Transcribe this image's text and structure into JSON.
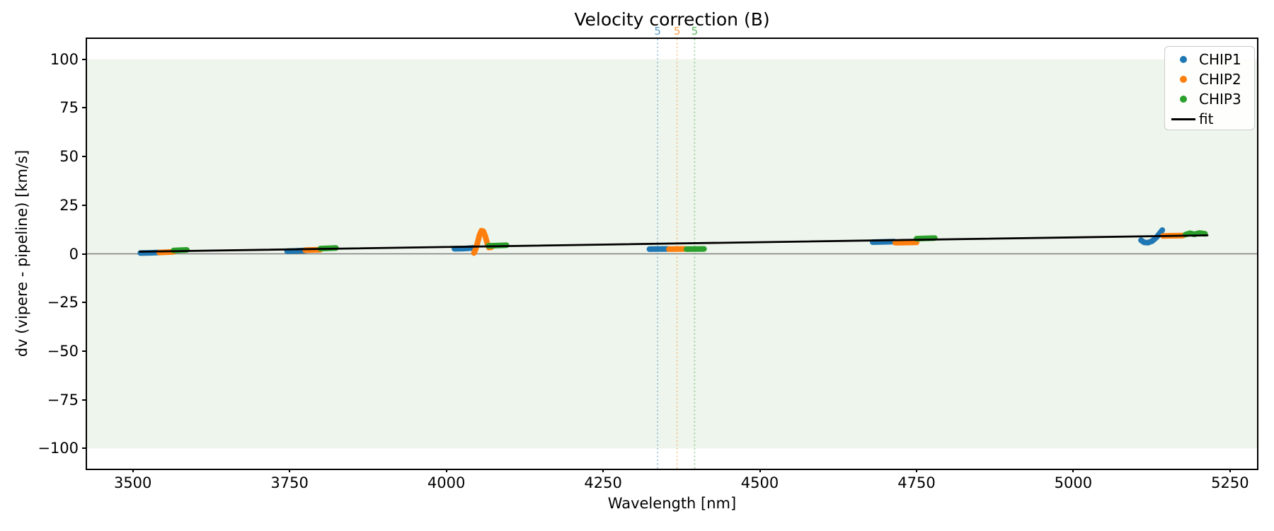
{
  "title": "Velocity correction (B)",
  "colors": {
    "chip1": "#1f77b4",
    "chip2": "#ff7f0e",
    "chip3": "#2ca02c",
    "fit": "#000000",
    "band": "#eef5ec",
    "zero_line": "#7f7f7f",
    "spine": "#000000",
    "legend_border": "#cccccc"
  },
  "chart_data": {
    "type": "scatter",
    "title": "Velocity correction (B)",
    "xlabel": "Wavelength [nm]",
    "ylabel": "dv (vipere - pipeline) [km/s]",
    "xlim": [
      3427,
      5293
    ],
    "ylim": [
      -110.4,
      110.4
    ],
    "grid": false,
    "x_ticks": [
      {
        "value": 3500,
        "label": "3500"
      },
      {
        "value": 3750,
        "label": "3750"
      },
      {
        "value": 4000,
        "label": "4000"
      },
      {
        "value": 4250,
        "label": "4250"
      },
      {
        "value": 4500,
        "label": "4500"
      },
      {
        "value": 4750,
        "label": "4750"
      },
      {
        "value": 5000,
        "label": "5000"
      },
      {
        "value": 5250,
        "label": "5250"
      }
    ],
    "y_ticks": [
      {
        "value": 100,
        "label": "100"
      },
      {
        "value": 75,
        "label": "75"
      },
      {
        "value": 50,
        "label": "50"
      },
      {
        "value": 25,
        "label": "25"
      },
      {
        "value": 0,
        "label": "0"
      },
      {
        "value": -25,
        "label": "−25"
      },
      {
        "value": -50,
        "label": "−50"
      },
      {
        "value": -75,
        "label": "−75"
      },
      {
        "value": -100,
        "label": "−100"
      }
    ],
    "band": {
      "from": -100,
      "to": 100,
      "color": "#eef5ec"
    },
    "zero_line": {
      "y": 0,
      "color": "#7f7f7f"
    },
    "vertical_markers": [
      {
        "x": 4337,
        "label": "5",
        "color": "#1f77b4"
      },
      {
        "x": 4368,
        "label": "5",
        "color": "#ff7f0e"
      },
      {
        "x": 4396,
        "label": "5",
        "color": "#2ca02c"
      }
    ],
    "series": [
      {
        "name": "CHIP1",
        "color": "#1f77b4",
        "segments": [
          [
            [
              3512,
              0.4
            ],
            [
              3527,
              0.5
            ],
            [
              3541,
              0.7
            ]
          ],
          [
            [
              3746,
              1.4
            ],
            [
              3760,
              1.5
            ],
            [
              3774,
              1.7
            ]
          ],
          [
            [
              4013,
              2.6
            ],
            [
              4028,
              2.7
            ],
            [
              4045,
              3.1
            ]
          ],
          [
            [
              4324,
              2.4
            ],
            [
              4353,
              2.5
            ]
          ],
          [
            [
              4680,
              6.0
            ],
            [
              4714,
              6.3
            ]
          ],
          [
            [
              5108,
              7.0
            ],
            [
              5113,
              5.9
            ],
            [
              5119,
              5.7
            ],
            [
              5126,
              6.6
            ],
            [
              5133,
              8.6
            ],
            [
              5139,
              11.0
            ],
            [
              5142,
              12.2
            ]
          ]
        ]
      },
      {
        "name": "CHIP2",
        "color": "#ff7f0e",
        "segments": [
          [
            [
              3542,
              0.7
            ],
            [
              3565,
              1.0
            ]
          ],
          [
            [
              3775,
              1.9
            ],
            [
              3799,
              2.1
            ]
          ],
          [
            [
              4044,
              0.4
            ],
            [
              4047,
              2.5
            ],
            [
              4050,
              6.0
            ],
            [
              4053,
              9.6
            ],
            [
              4056,
              11.9
            ],
            [
              4059,
              11.6
            ],
            [
              4062,
              9.2
            ],
            [
              4065,
              5.6
            ],
            [
              4068,
              3.2
            ],
            [
              4072,
              3.4
            ]
          ],
          [
            [
              4355,
              2.4
            ],
            [
              4381,
              2.5
            ]
          ],
          [
            [
              4716,
              5.7
            ],
            [
              4750,
              5.9
            ]
          ],
          [
            [
              5143,
              9.2
            ],
            [
              5175,
              9.4
            ]
          ]
        ]
      },
      {
        "name": "CHIP3",
        "color": "#2ca02c",
        "segments": [
          [
            [
              3565,
              1.7
            ],
            [
              3586,
              2.0
            ]
          ],
          [
            [
              3799,
              2.7
            ],
            [
              3824,
              3.0
            ]
          ],
          [
            [
              4067,
              4.1
            ],
            [
              4096,
              4.4
            ]
          ],
          [
            [
              4383,
              2.4
            ],
            [
              4411,
              2.5
            ]
          ],
          [
            [
              4750,
              7.8
            ],
            [
              4779,
              8.1
            ]
          ],
          [
            [
              5179,
              9.9
            ],
            [
              5186,
              10.6
            ],
            [
              5193,
              10.0
            ],
            [
              5201,
              10.7
            ],
            [
              5210,
              10.3
            ]
          ]
        ]
      }
    ],
    "fit": {
      "name": "fit",
      "color": "#000000",
      "points": [
        [
          3511,
          1.1
        ],
        [
          5214,
          9.5
        ]
      ]
    },
    "legend": {
      "position": "upper right",
      "entries": [
        {
          "label": "CHIP1",
          "marker": "dot",
          "color": "#1f77b4"
        },
        {
          "label": "CHIP2",
          "marker": "dot",
          "color": "#ff7f0e"
        },
        {
          "label": "CHIP3",
          "marker": "dot",
          "color": "#2ca02c"
        },
        {
          "label": "fit",
          "marker": "line",
          "color": "#000000"
        }
      ]
    }
  }
}
